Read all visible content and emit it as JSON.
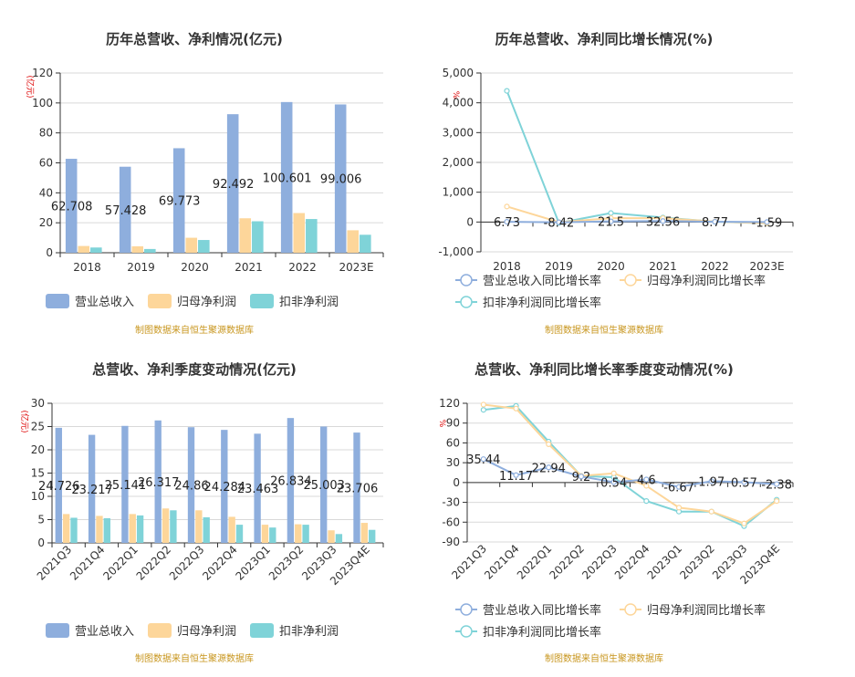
{
  "colors": {
    "revenue": "#8eaedd",
    "parent": "#fdd69a",
    "deducted": "#7fd3d8",
    "grid": "#d9d9d9",
    "axis": "#333333"
  },
  "legend_bar": [
    "营业总收入",
    "归母净利润",
    "扣非净利润"
  ],
  "legend_line": [
    "营业总收入同比增长率",
    "归母净利润同比增长率",
    "扣非净利润同比增长率"
  ],
  "source_note": "制图数据来自恒生聚源数据库",
  "chart_data": [
    {
      "type": "bar",
      "title": "历年总营收、净利情况(亿元)",
      "ylabel": "(亿元)",
      "categories": [
        "2018",
        "2019",
        "2020",
        "2021",
        "2022",
        "2023E"
      ],
      "ylim": [
        0,
        120
      ],
      "yticks": [
        "0",
        "20",
        "40",
        "60",
        "80",
        "100",
        "120"
      ],
      "series": [
        {
          "name": "营业总收入",
          "values": [
            62.708,
            57.428,
            69.773,
            92.492,
            100.601,
            99.006
          ],
          "labels": [
            "62.708",
            "57.428",
            "69.773",
            "92.492",
            "100.601",
            "99.006"
          ]
        },
        {
          "name": "归母净利润",
          "values": [
            4.5,
            4.3,
            10.0,
            23.0,
            26.5,
            15.0
          ]
        },
        {
          "name": "扣非净利润",
          "values": [
            3.5,
            2.5,
            8.5,
            21.0,
            22.5,
            12.0
          ]
        }
      ]
    },
    {
      "type": "line",
      "title": "历年总营收、净利同比增长情况(%)",
      "ylabel": "%",
      "categories": [
        "2018",
        "2019",
        "2020",
        "2021",
        "2022",
        "2023E"
      ],
      "ylim": [
        -1000,
        5000
      ],
      "yticks": [
        "-1,000",
        "0",
        "1,000",
        "2,000",
        "3,000",
        "4,000",
        "5,000"
      ],
      "series": [
        {
          "name": "营业总收入同比增长率",
          "values": [
            6.73,
            -8.42,
            21.5,
            32.56,
            8.77,
            -1.59
          ],
          "labels": [
            "6.73",
            "-8.42",
            "21.5",
            "32.56",
            "8.77",
            "-1.59"
          ]
        },
        {
          "name": "归母净利润同比增长率",
          "values": [
            520,
            -5,
            130,
            130,
            15,
            -40
          ]
        },
        {
          "name": "扣非净利润同比增长率",
          "values": [
            4400,
            -30,
            300,
            150,
            10,
            -45
          ]
        }
      ]
    },
    {
      "type": "bar",
      "title": "总营收、净利季度变动情况(亿元)",
      "ylabel": "(亿元)",
      "categories": [
        "2021Q3",
        "2021Q4",
        "2022Q1",
        "2022Q2",
        "2022Q3",
        "2022Q4",
        "2023Q1",
        "2023Q2",
        "2023Q3",
        "2023Q4E"
      ],
      "ylim": [
        0,
        30
      ],
      "yticks": [
        "0",
        "5",
        "10",
        "15",
        "20",
        "25",
        "30"
      ],
      "series": [
        {
          "name": "营业总收入",
          "values": [
            24.726,
            23.217,
            25.141,
            26.317,
            24.86,
            24.284,
            23.463,
            26.834,
            25.003,
            23.706
          ],
          "labels": [
            "24.726",
            "23.217",
            "25.141",
            "26.317",
            "24.86",
            "24.284",
            "23.463",
            "26.834",
            "25.003",
            "23.706"
          ]
        },
        {
          "name": "归母净利润",
          "values": [
            6.2,
            5.8,
            6.2,
            7.4,
            7.0,
            5.6,
            3.9,
            4.0,
            2.7,
            4.3
          ]
        },
        {
          "name": "扣非净利润",
          "values": [
            5.4,
            5.3,
            5.9,
            7.0,
            5.5,
            3.9,
            3.3,
            3.9,
            1.9,
            2.8
          ]
        }
      ]
    },
    {
      "type": "line",
      "title": "总营收、净利同比增长率季度变动情况(%)",
      "ylabel": "%",
      "categories": [
        "2021Q3",
        "2021Q4",
        "2022Q1",
        "2022Q2",
        "2022Q3",
        "2022Q4",
        "2023Q1",
        "2023Q2",
        "2023Q3",
        "2023Q4E"
      ],
      "ylim": [
        -90,
        120
      ],
      "yticks": [
        "-90",
        "-60",
        "-30",
        "0",
        "30",
        "60",
        "90",
        "120"
      ],
      "series": [
        {
          "name": "营业总收入同比增长率",
          "values": [
            35.44,
            11.17,
            22.94,
            9.2,
            0.54,
            4.6,
            -6.67,
            1.97,
            0.57,
            -2.38
          ],
          "labels": [
            "35.44",
            "11.17",
            "22.94",
            "9.2",
            "0.54",
            "4.6",
            "-6.67",
            "1.97",
            "0.57",
            "-2.38"
          ]
        },
        {
          "name": "归母净利润同比增长率",
          "values": [
            118,
            112,
            58,
            10,
            14,
            -5,
            -38,
            -44,
            -62,
            -28
          ]
        },
        {
          "name": "扣非净利润同比增长率",
          "values": [
            110,
            116,
            62,
            10,
            8,
            -28,
            -44,
            -44,
            -66,
            -26
          ]
        }
      ]
    }
  ]
}
